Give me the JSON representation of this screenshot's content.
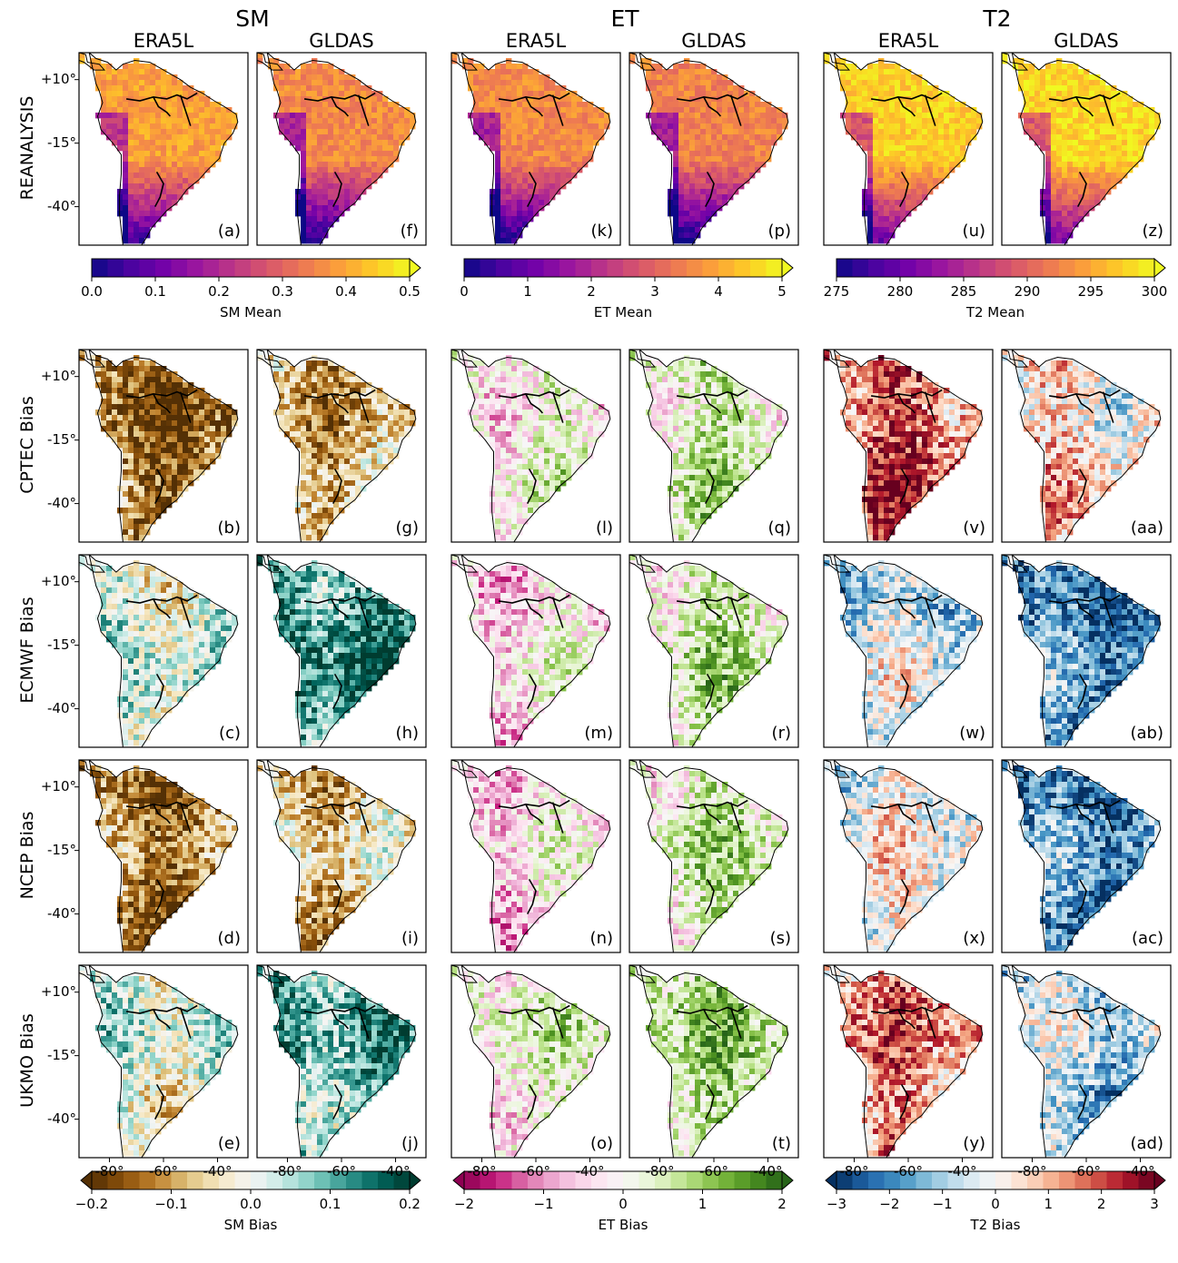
{
  "chart_data": {
    "type": "heatmap",
    "variable_groups": [
      {
        "key": "sm",
        "title": "SM",
        "datasets": [
          "ERA5L",
          "GLDAS"
        ]
      },
      {
        "key": "et",
        "title": "ET",
        "datasets": [
          "ERA5L",
          "GLDAS"
        ]
      },
      {
        "key": "t2",
        "title": "T2",
        "datasets": [
          "ERA5L",
          "GLDAS"
        ]
      }
    ],
    "rows": [
      "REANALYSIS",
      "CPTEC Bias",
      "ECMWF Bias",
      "NCEP Bias",
      "UKMO Bias"
    ],
    "lat_ticks": [
      "+10°",
      "-15°",
      "-40°"
    ],
    "lon_ticks": [
      "-80°",
      "-60°",
      "-40°"
    ],
    "panel_labels": [
      [
        "(a)",
        "(f)",
        "(k)",
        "(p)",
        "(u)",
        "(z)"
      ],
      [
        "(b)",
        "(g)",
        "(l)",
        "(q)",
        "(v)",
        "(aa)"
      ],
      [
        "(c)",
        "(h)",
        "(m)",
        "(r)",
        "(w)",
        "(ab)"
      ],
      [
        "(d)",
        "(i)",
        "(n)",
        "(s)",
        "(x)",
        "(ac)"
      ],
      [
        "(e)",
        "(j)",
        "(o)",
        "(t)",
        "(y)",
        "(ad)"
      ]
    ],
    "panel_mean_level": [
      [
        0.78,
        0.72,
        0.72,
        0.7,
        0.9,
        0.92
      ],
      [
        -0.7,
        -0.35,
        0.05,
        0.25,
        0.6,
        0.15
      ],
      [
        0.1,
        0.65,
        -0.1,
        0.25,
        -0.2,
        -0.65
      ],
      [
        -0.65,
        -0.3,
        -0.15,
        0.2,
        -0.05,
        -0.65
      ],
      [
        0.05,
        0.45,
        0.1,
        0.35,
        0.4,
        -0.3
      ]
    ],
    "colorbars": [
      {
        "key": "sm_mean",
        "label": "SM Mean",
        "ticks": [
          "0.0",
          "0.1",
          "0.2",
          "0.3",
          "0.4",
          "0.5"
        ],
        "range": [
          0,
          0.5
        ],
        "colormap": "plasma",
        "extend": "max"
      },
      {
        "key": "et_mean",
        "label": "ET Mean",
        "ticks": [
          "0",
          "1",
          "2",
          "3",
          "4",
          "5"
        ],
        "range": [
          0,
          5
        ],
        "colormap": "plasma",
        "extend": "max"
      },
      {
        "key": "t2_mean",
        "label": "T2 Mean",
        "ticks": [
          "275",
          "280",
          "285",
          "290",
          "295",
          "300"
        ],
        "range": [
          275,
          300
        ],
        "colormap": "plasma",
        "extend": "max"
      },
      {
        "key": "sm_bias",
        "label": "SM Bias",
        "ticks": [
          "−0.2",
          "−0.1",
          "0.0",
          "0.1",
          "0.2"
        ],
        "range": [
          -0.2,
          0.2
        ],
        "colormap": "BrBG",
        "extend": "both"
      },
      {
        "key": "et_bias",
        "label": "ET Bias",
        "ticks": [
          "−2",
          "−1",
          "0",
          "1",
          "2"
        ],
        "range": [
          -2,
          2
        ],
        "colormap": "PiYG",
        "extend": "both"
      },
      {
        "key": "t2_bias",
        "label": "T2 Bias",
        "ticks": [
          "−3",
          "−2",
          "−1",
          "0",
          "1",
          "2",
          "3"
        ],
        "range": [
          -3,
          3
        ],
        "colormap": "RdBu_r",
        "extend": "both"
      }
    ]
  }
}
